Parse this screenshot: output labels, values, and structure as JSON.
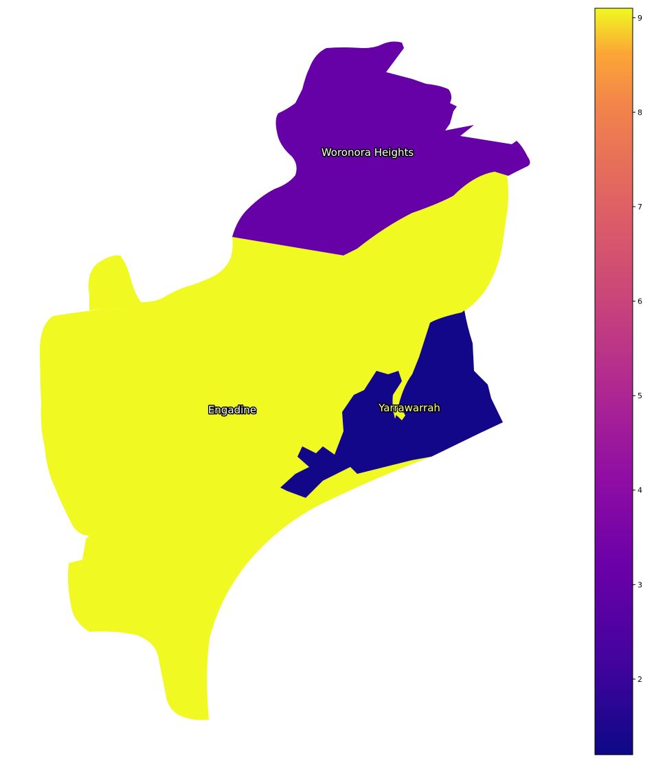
{
  "colors": {
    "background": "#ffffff",
    "legend_border": "#000000",
    "label_text": "#ffffff",
    "label_halo": "#000000"
  },
  "chart_data": {
    "type": "choropleth",
    "colormap": "plasma",
    "value_range": [
      1.2,
      9.1
    ],
    "regions": [
      {
        "name": "Woronora Heights",
        "value": 3,
        "color": "#6600a7"
      },
      {
        "name": "Engadine",
        "value": 9,
        "color": "#f0f921"
      },
      {
        "name": "Yarrawarrah",
        "value": 1.2,
        "color": "#130789"
      }
    ],
    "colorbar": {
      "ticks": [
        2,
        3,
        4,
        5,
        6,
        7,
        8,
        9
      ],
      "tick_labels": [
        "2",
        "3",
        "4",
        "5",
        "6",
        "7",
        "8",
        "9"
      ],
      "placement": "right"
    },
    "axes_visible": false
  }
}
